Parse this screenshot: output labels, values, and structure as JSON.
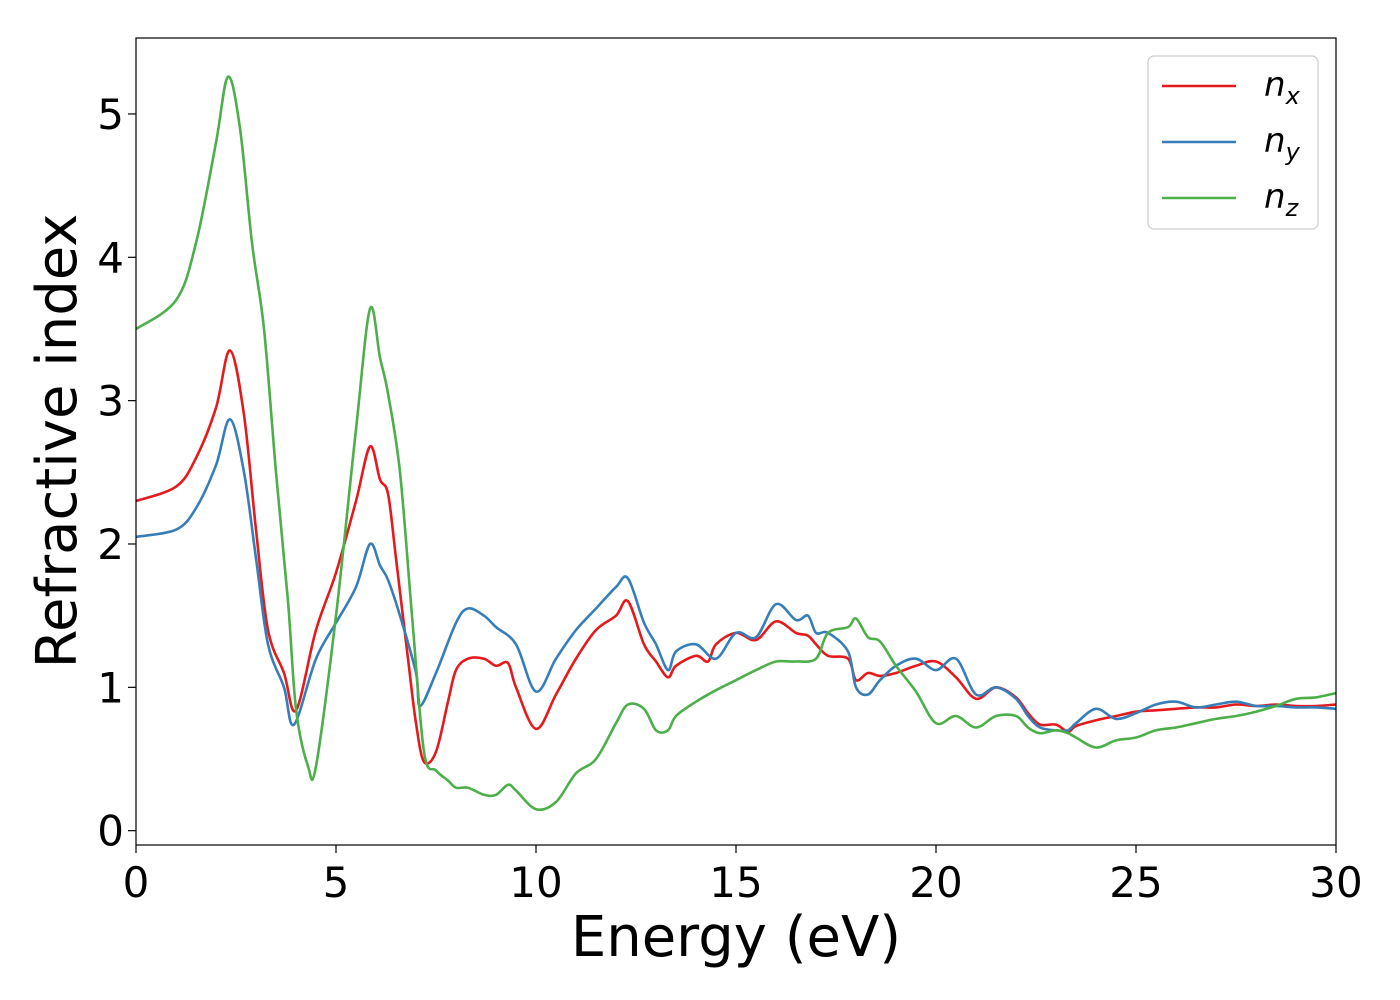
{
  "chart_data": {
    "type": "line",
    "xlabel": "Energy (eV)",
    "ylabel": "Refractive index",
    "xlim": [
      0,
      30
    ],
    "ylim": [
      -0.1,
      5.53
    ],
    "xticks": [
      0,
      5,
      10,
      15,
      20,
      25,
      30
    ],
    "yticks": [
      0,
      1,
      2,
      3,
      4,
      5
    ],
    "xtick_labels": [
      "0",
      "5",
      "10",
      "15",
      "20",
      "25",
      "30"
    ],
    "ytick_labels": [
      "0",
      "1",
      "2",
      "3",
      "4",
      "5"
    ],
    "grid": false,
    "legend_position": "top-right",
    "series": [
      {
        "name": "n_x",
        "label_base": "n",
        "label_sub": "x",
        "color": "#e41a1c",
        "x": [
          0,
          1.0,
          1.5,
          2.0,
          2.35,
          2.7,
          3.0,
          3.3,
          3.7,
          4.0,
          4.5,
          5.0,
          5.5,
          5.85,
          6.1,
          6.3,
          6.5,
          6.8,
          7.0,
          7.2,
          7.5,
          7.8,
          8.0,
          8.3,
          8.7,
          9.0,
          9.3,
          9.5,
          10.0,
          10.5,
          11.0,
          11.5,
          12.0,
          12.3,
          12.7,
          13.0,
          13.3,
          13.5,
          14.0,
          14.3,
          14.5,
          15.0,
          15.5,
          16.0,
          16.5,
          16.8,
          17.0,
          17.3,
          17.8,
          18.0,
          18.3,
          18.6,
          19.0,
          19.5,
          20.0,
          20.5,
          21.0,
          21.5,
          22.0,
          22.3,
          22.6,
          23.0,
          23.3,
          23.5,
          24.0,
          24.5,
          25.0,
          25.5,
          26.0,
          26.5,
          27.0,
          27.5,
          28.0,
          28.5,
          29.0,
          29.5,
          30.0
        ],
        "y": [
          2.3,
          2.4,
          2.6,
          2.95,
          3.35,
          2.9,
          2.1,
          1.4,
          1.1,
          0.84,
          1.4,
          1.8,
          2.3,
          2.68,
          2.45,
          2.35,
          1.9,
          1.2,
          0.75,
          0.48,
          0.55,
          0.9,
          1.12,
          1.2,
          1.2,
          1.15,
          1.17,
          1.0,
          0.71,
          0.95,
          1.2,
          1.4,
          1.5,
          1.6,
          1.3,
          1.18,
          1.07,
          1.15,
          1.22,
          1.18,
          1.3,
          1.38,
          1.33,
          1.46,
          1.38,
          1.36,
          1.3,
          1.22,
          1.2,
          1.05,
          1.1,
          1.08,
          1.1,
          1.15,
          1.18,
          1.07,
          0.92,
          1.0,
          0.93,
          0.82,
          0.74,
          0.74,
          0.69,
          0.73,
          0.77,
          0.8,
          0.83,
          0.84,
          0.85,
          0.86,
          0.86,
          0.88,
          0.87,
          0.88,
          0.87,
          0.87,
          0.88
        ]
      },
      {
        "name": "n_y",
        "label_base": "n",
        "label_sub": "y",
        "color": "#377eb8",
        "x": [
          0,
          1.0,
          1.5,
          2.0,
          2.35,
          2.7,
          3.0,
          3.3,
          3.7,
          3.95,
          4.5,
          5.0,
          5.5,
          5.85,
          6.1,
          6.3,
          6.6,
          7.0,
          7.1,
          7.5,
          8.0,
          8.3,
          8.7,
          9.0,
          9.5,
          10.0,
          10.5,
          11.0,
          11.5,
          12.0,
          12.3,
          12.7,
          13.0,
          13.3,
          13.5,
          14.0,
          14.5,
          15.0,
          15.5,
          16.0,
          16.5,
          16.8,
          17.0,
          17.3,
          17.8,
          18.0,
          18.3,
          18.6,
          19.0,
          19.5,
          20.0,
          20.5,
          21.0,
          21.5,
          22.0,
          22.3,
          22.6,
          23.0,
          23.3,
          23.5,
          24.0,
          24.5,
          25.0,
          25.5,
          26.0,
          26.5,
          27.0,
          27.5,
          28.0,
          28.5,
          29.0,
          29.5,
          30.0
        ],
        "y": [
          2.05,
          2.1,
          2.25,
          2.55,
          2.87,
          2.5,
          1.9,
          1.3,
          1.0,
          0.74,
          1.2,
          1.45,
          1.7,
          2.0,
          1.85,
          1.75,
          1.5,
          1.1,
          0.87,
          1.1,
          1.45,
          1.55,
          1.5,
          1.42,
          1.3,
          0.97,
          1.2,
          1.4,
          1.55,
          1.7,
          1.76,
          1.45,
          1.3,
          1.12,
          1.25,
          1.3,
          1.2,
          1.38,
          1.35,
          1.58,
          1.47,
          1.5,
          1.38,
          1.38,
          1.25,
          1.0,
          0.95,
          1.05,
          1.15,
          1.2,
          1.12,
          1.2,
          0.95,
          1.0,
          0.92,
          0.8,
          0.72,
          0.7,
          0.7,
          0.75,
          0.85,
          0.78,
          0.82,
          0.88,
          0.9,
          0.86,
          0.88,
          0.9,
          0.87,
          0.87,
          0.86,
          0.86,
          0.85
        ]
      },
      {
        "name": "n_z",
        "label_base": "n",
        "label_sub": "z",
        "color": "#4daf4a",
        "x": [
          0,
          1.0,
          1.5,
          2.0,
          2.3,
          2.6,
          2.9,
          3.2,
          3.5,
          3.8,
          4.0,
          4.3,
          4.5,
          5.0,
          5.5,
          5.85,
          6.1,
          6.3,
          6.6,
          6.9,
          7.2,
          7.5,
          7.8,
          8.0,
          8.3,
          8.7,
          9.0,
          9.3,
          9.5,
          10.0,
          10.5,
          11.0,
          11.5,
          12.0,
          12.3,
          12.7,
          13.0,
          13.3,
          13.5,
          14.0,
          14.5,
          15.0,
          15.5,
          16.0,
          16.5,
          17.0,
          17.3,
          17.8,
          18.0,
          18.3,
          18.6,
          19.0,
          19.5,
          20.0,
          20.5,
          21.0,
          21.5,
          22.0,
          22.3,
          22.6,
          23.0,
          23.3,
          23.5,
          24.0,
          24.5,
          25.0,
          25.5,
          26.0,
          26.5,
          27.0,
          27.5,
          28.0,
          28.5,
          29.0,
          29.5,
          30.0
        ],
        "y": [
          3.5,
          3.7,
          4.1,
          4.8,
          5.26,
          4.9,
          4.1,
          3.5,
          2.5,
          1.6,
          0.85,
          0.45,
          0.45,
          1.5,
          2.8,
          3.64,
          3.3,
          3.05,
          2.5,
          1.5,
          0.55,
          0.42,
          0.35,
          0.3,
          0.3,
          0.25,
          0.25,
          0.32,
          0.28,
          0.15,
          0.2,
          0.4,
          0.5,
          0.75,
          0.88,
          0.85,
          0.7,
          0.7,
          0.8,
          0.9,
          0.98,
          1.05,
          1.12,
          1.18,
          1.18,
          1.2,
          1.38,
          1.42,
          1.48,
          1.35,
          1.32,
          1.15,
          0.97,
          0.75,
          0.8,
          0.72,
          0.8,
          0.8,
          0.72,
          0.68,
          0.7,
          0.68,
          0.65,
          0.58,
          0.63,
          0.65,
          0.7,
          0.72,
          0.75,
          0.78,
          0.8,
          0.83,
          0.87,
          0.92,
          0.93,
          0.96
        ]
      }
    ]
  }
}
